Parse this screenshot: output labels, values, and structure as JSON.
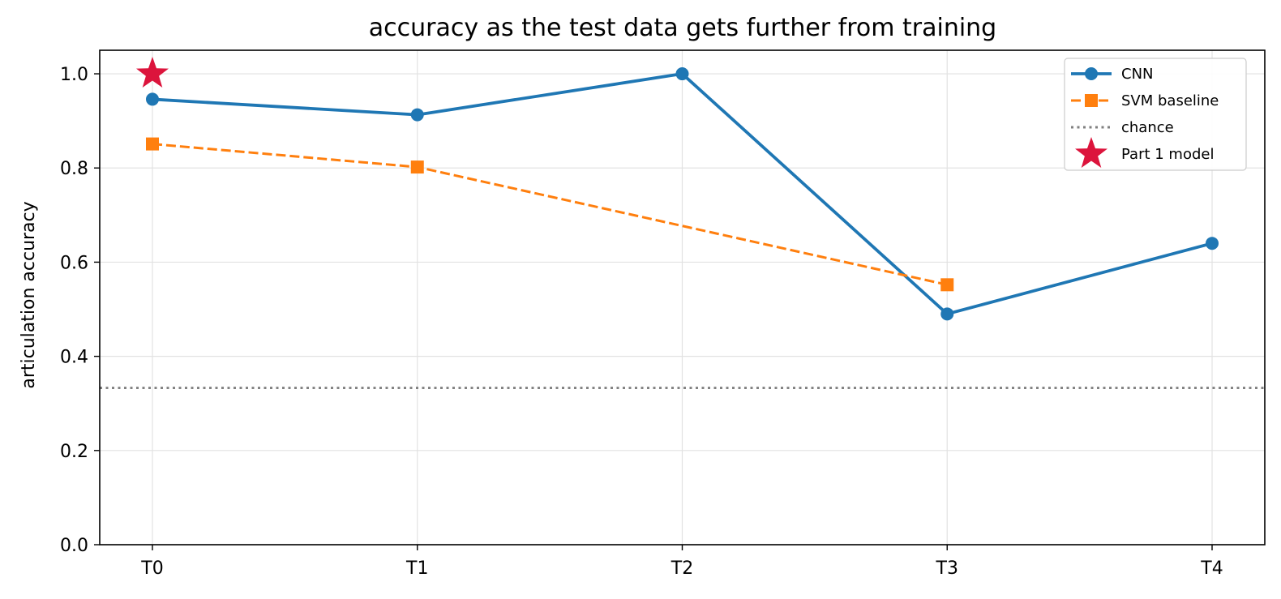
{
  "chart_data": {
    "type": "line",
    "title": "accuracy as the test data gets further from training",
    "xlabel": "",
    "ylabel": "articulation accuracy",
    "categories": [
      "T0",
      "T1",
      "T2",
      "T3",
      "T4"
    ],
    "ylim": [
      0.0,
      1.05
    ],
    "yticks": [
      "0.0",
      "0.2",
      "0.4",
      "0.6",
      "0.8",
      "1.0"
    ],
    "grid": true,
    "legend_position": "top-right",
    "series": [
      {
        "name": "CNN",
        "style": "solid",
        "marker": "circle",
        "color": "#1f77b4",
        "values": [
          0.946,
          0.913,
          1.0,
          0.49,
          0.64
        ]
      },
      {
        "name": "SVM baseline",
        "style": "dashed",
        "marker": "square",
        "color": "#ff7f0e",
        "values": [
          0.851,
          0.802,
          null,
          0.552,
          null
        ]
      },
      {
        "name": "chance",
        "style": "dotted",
        "marker": "none",
        "color": "#808080",
        "constant": 0.333
      },
      {
        "name": "Part 1 model",
        "style": "none",
        "marker": "star",
        "color": "#dc143c",
        "points": [
          {
            "x": "T0",
            "y": 1.0
          }
        ]
      }
    ]
  }
}
